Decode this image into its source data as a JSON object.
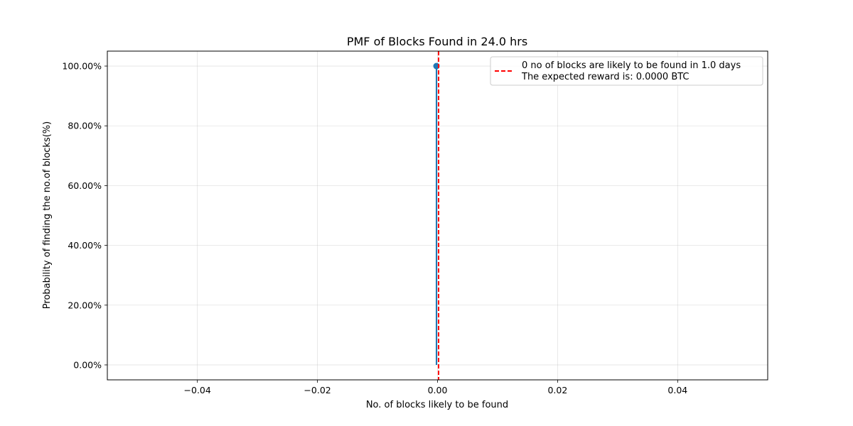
{
  "chart_data": {
    "type": "stem",
    "title": "PMF of Blocks Found in 24.0 hrs",
    "xlabel": "No. of blocks likely to be found",
    "ylabel": "Probability of finding the no.of blocks(%)",
    "xlim": [
      -0.055,
      0.055
    ],
    "ylim": [
      -0.05,
      1.05
    ],
    "x_ticks": [
      -0.04,
      -0.02,
      0.0,
      0.02,
      0.04
    ],
    "x_tick_labels": [
      "−0.04",
      "−0.02",
      "0.00",
      "0.02",
      "0.04"
    ],
    "y_ticks": [
      0.0,
      0.2,
      0.4,
      0.6,
      0.8,
      1.0
    ],
    "y_tick_labels": [
      "0.00%",
      "20.00%",
      "40.00%",
      "60.00%",
      "80.00%",
      "100.00%"
    ],
    "grid": true,
    "series": [
      {
        "x": [
          0
        ],
        "y": [
          1.0
        ],
        "color": "#1f77b4"
      }
    ],
    "reference_line": {
      "x": 0,
      "color": "#ff0000",
      "style": "dashed"
    },
    "legend": {
      "placement": "upper right",
      "label_line1": "0 no of blocks are likely to be found in 1.0 days",
      "label_line2": "The expected reward is: 0.0000 BTC"
    }
  }
}
